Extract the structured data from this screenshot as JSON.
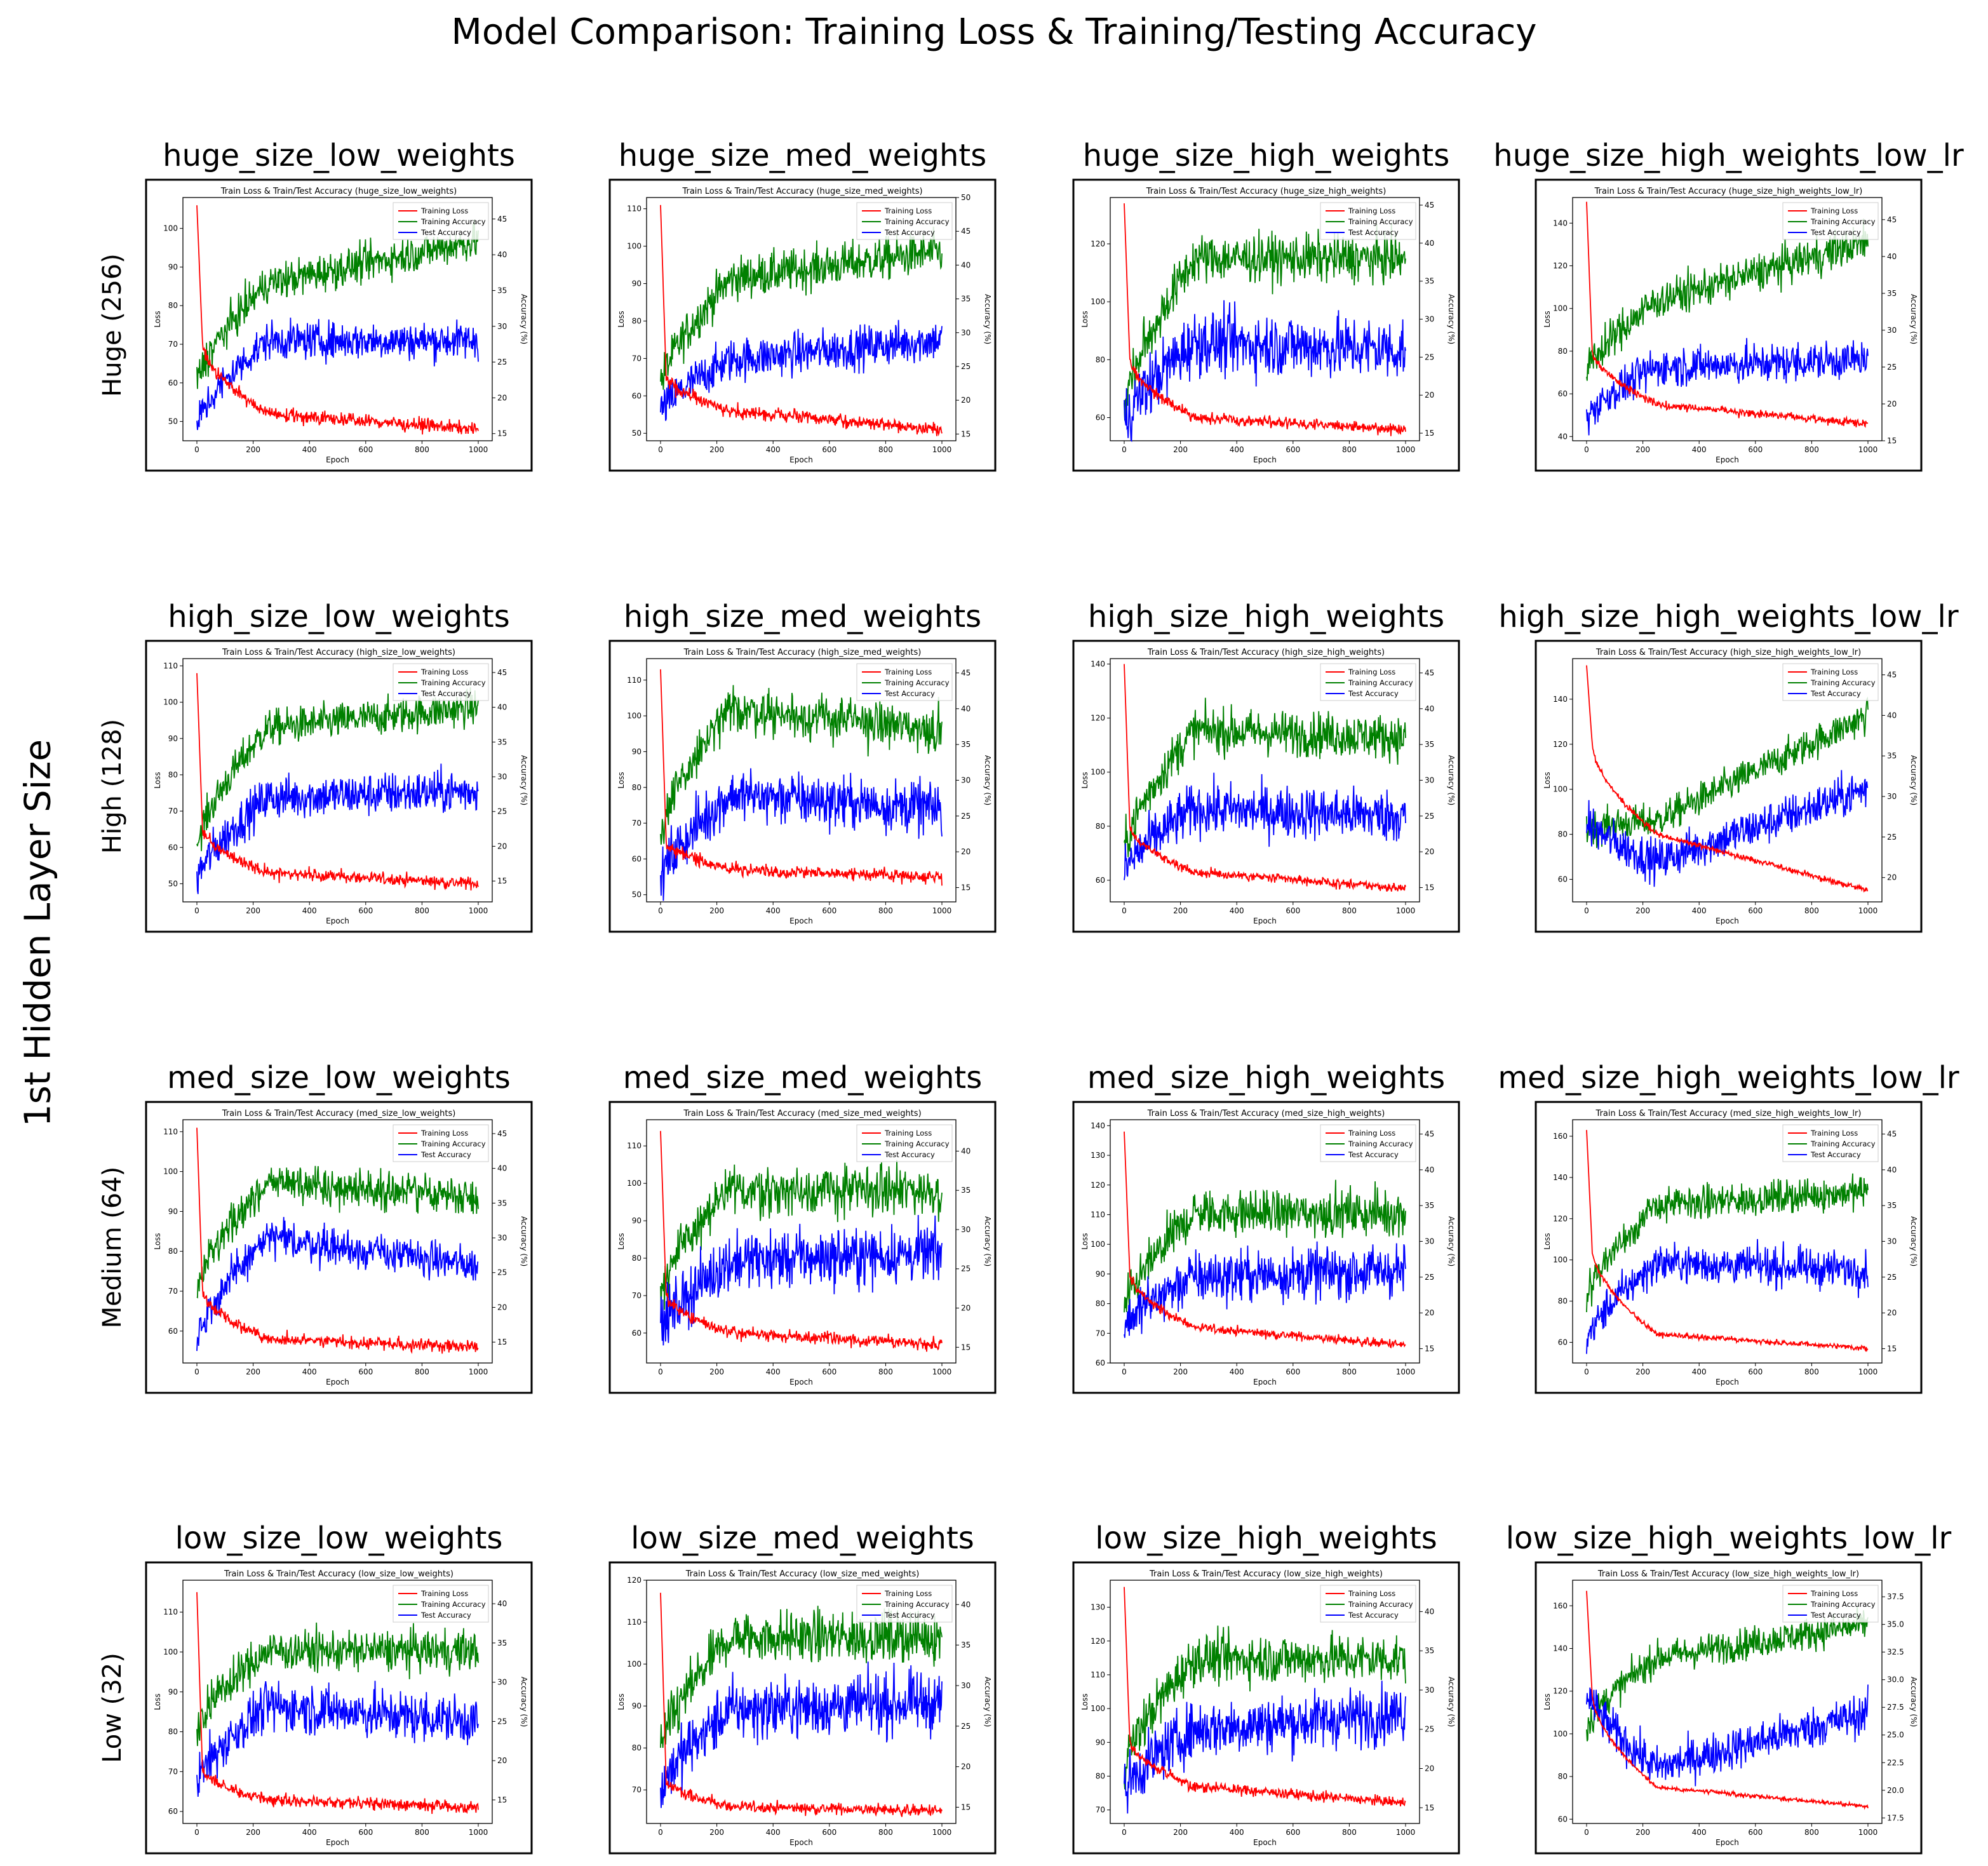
{
  "figure": {
    "title": "Model Comparison: Training Loss & Training/Testing Accuracy",
    "side_label": "1st Hidden Layer Size"
  },
  "colors": {
    "loss": "#ff0000",
    "train_acc": "#008000",
    "test_acc": "#0000ff"
  },
  "chart_data": [
    {
      "type": "line",
      "row_label": "Huge (256)",
      "panel_title": "huge_size_low_weights",
      "inner_title": "Train Loss & Train/Test Accuracy (huge_size_low_weights)",
      "xlabel": "Epoch",
      "ylabel": "Loss",
      "y2label": "Accuracy (%)",
      "xlim": [
        0,
        1000
      ],
      "ylim": [
        45,
        108
      ],
      "y2lim": [
        14,
        48
      ],
      "xticks": [
        0,
        200,
        400,
        600,
        800,
        1000
      ],
      "yticks": [
        50,
        60,
        70,
        80,
        90,
        100
      ],
      "y2ticks": [
        15,
        20,
        25,
        30,
        35,
        40,
        45
      ],
      "legend": [
        "Training Loss",
        "Training Accuracy",
        "Test Accuracy"
      ],
      "legend_loc": "upper right",
      "loss": {
        "start": 106,
        "early": 70,
        "mid": 52,
        "end": 48,
        "noise": 2
      },
      "train_acc": {
        "start": 22,
        "mid": 36,
        "end": 42,
        "noise": 2.5
      },
      "test_acc": {
        "start": 16,
        "mid": 28,
        "end": 28,
        "noise": 2.5
      }
    },
    {
      "type": "line",
      "panel_title": "huge_size_med_weights",
      "inner_title": "Train Loss & Train/Test Accuracy (huge_size_med_weights)",
      "xlabel": "Epoch",
      "ylabel": "Loss",
      "y2label": "Accuracy (%)",
      "xlim": [
        0,
        1000
      ],
      "ylim": [
        48,
        113
      ],
      "y2lim": [
        14,
        50
      ],
      "xticks": [
        0,
        200,
        400,
        600,
        800,
        1000
      ],
      "yticks": [
        50,
        60,
        70,
        80,
        90,
        100,
        110
      ],
      "y2ticks": [
        15,
        20,
        25,
        30,
        35,
        40,
        45,
        50
      ],
      "legend": [
        "Training Loss",
        "Training Accuracy",
        "Test Accuracy"
      ],
      "legend_loc": "upper right",
      "loss": {
        "start": 111,
        "early": 65,
        "mid": 56,
        "end": 51,
        "noise": 2
      },
      "train_acc": {
        "start": 22,
        "mid": 38,
        "end": 42,
        "noise": 3
      },
      "test_acc": {
        "start": 18,
        "mid": 26,
        "end": 29,
        "noise": 3
      }
    },
    {
      "type": "line",
      "panel_title": "huge_size_high_weights",
      "inner_title": "Train Loss & Train/Test Accuracy (huge_size_high_weights)",
      "xlabel": "Epoch",
      "ylabel": "Loss",
      "y2label": "Accuracy (%)",
      "xlim": [
        0,
        1000
      ],
      "ylim": [
        52,
        136
      ],
      "y2lim": [
        14,
        46
      ],
      "xticks": [
        0,
        200,
        400,
        600,
        800,
        1000
      ],
      "yticks": [
        60,
        80,
        100,
        120
      ],
      "y2ticks": [
        15,
        20,
        25,
        30,
        35,
        40,
        45
      ],
      "legend": [
        "Training Loss",
        "Training Accuracy",
        "Test Accuracy"
      ],
      "legend_loc": "upper right",
      "loss": {
        "start": 134,
        "early": 80,
        "mid": 60,
        "end": 56,
        "noise": 2.2
      },
      "train_acc": {
        "start": 18,
        "mid": 38,
        "end": 38,
        "noise": 3
      },
      "test_acc": {
        "start": 16,
        "mid": 27,
        "end": 26,
        "noise": 4
      }
    },
    {
      "type": "line",
      "panel_title": "huge_size_high_weights_low_lr",
      "inner_title": "Train Loss & Train/Test Accuracy (huge_size_high_weights_low_lr)",
      "xlabel": "Epoch",
      "ylabel": "Loss",
      "y2label": "Accuracy (%)",
      "xlim": [
        0,
        1000
      ],
      "ylim": [
        38,
        152
      ],
      "y2lim": [
        15,
        48
      ],
      "xticks": [
        0,
        200,
        400,
        600,
        800,
        1000
      ],
      "yticks": [
        40,
        60,
        80,
        100,
        120,
        140
      ],
      "y2ticks": [
        15,
        20,
        25,
        30,
        35,
        40,
        45
      ],
      "legend": [
        "Training Loss",
        "Training Accuracy",
        "Test Accuracy"
      ],
      "legend_loc": "upper right",
      "loss": {
        "start": 150,
        "early": 80,
        "mid": 55,
        "end": 46,
        "noise": 2.2
      },
      "train_acc": {
        "start": 24,
        "mid": 34,
        "end": 42,
        "noise": 2.5
      },
      "test_acc": {
        "start": 18,
        "mid": 25,
        "end": 26,
        "noise": 2.5
      }
    },
    {
      "type": "line",
      "row_label": "High (128)",
      "panel_title": "high_size_low_weights",
      "inner_title": "Train Loss & Train/Test Accuracy (high_size_low_weights)",
      "xlabel": "Epoch",
      "ylabel": "Loss",
      "y2label": "Accuracy (%)",
      "xlim": [
        0,
        1000
      ],
      "ylim": [
        45,
        112
      ],
      "y2lim": [
        12,
        47
      ],
      "xticks": [
        0,
        200,
        400,
        600,
        800,
        1000
      ],
      "yticks": [
        50,
        60,
        70,
        80,
        90,
        100,
        110
      ],
      "y2ticks": [
        15,
        20,
        25,
        30,
        35,
        40,
        45
      ],
      "legend": [
        "Training Loss",
        "Training Accuracy",
        "Test Accuracy"
      ],
      "legend_loc": "upper right",
      "loss": {
        "start": 108,
        "early": 65,
        "mid": 53,
        "end": 50,
        "noise": 2
      },
      "train_acc": {
        "start": 20,
        "mid": 37,
        "end": 40,
        "noise": 2.5
      },
      "test_acc": {
        "start": 15,
        "mid": 27,
        "end": 28,
        "noise": 3
      }
    },
    {
      "type": "line",
      "panel_title": "high_size_med_weights",
      "inner_title": "Train Loss & Train/Test Accuracy (high_size_med_weights)",
      "xlabel": "Epoch",
      "ylabel": "Loss",
      "y2label": "Accuracy (%)",
      "xlim": [
        0,
        1000
      ],
      "ylim": [
        48,
        116
      ],
      "y2lim": [
        13,
        47
      ],
      "xticks": [
        0,
        200,
        400,
        600,
        800,
        1000
      ],
      "yticks": [
        50,
        60,
        70,
        80,
        90,
        100,
        110
      ],
      "y2ticks": [
        15,
        20,
        25,
        30,
        35,
        40,
        45
      ],
      "legend": [
        "Training Loss",
        "Training Accuracy",
        "Test Accuracy"
      ],
      "legend_loc": "upper right",
      "loss": {
        "start": 113,
        "early": 65,
        "mid": 57,
        "end": 55,
        "noise": 2
      },
      "train_acc": {
        "start": 22,
        "mid": 40,
        "end": 37,
        "noise": 3
      },
      "test_acc": {
        "start": 16,
        "mid": 28,
        "end": 26,
        "noise": 3.5
      }
    },
    {
      "type": "line",
      "panel_title": "high_size_high_weights",
      "inner_title": "Train Loss & Train/Test Accuracy (high_size_high_weights)",
      "xlabel": "Epoch",
      "ylabel": "Loss",
      "y2label": "Accuracy (%)",
      "xlim": [
        0,
        1000
      ],
      "ylim": [
        52,
        142
      ],
      "y2lim": [
        13,
        47
      ],
      "xticks": [
        0,
        200,
        400,
        600,
        800,
        1000
      ],
      "yticks": [
        60,
        80,
        100,
        120,
        140
      ],
      "y2ticks": [
        15,
        20,
        25,
        30,
        35,
        40,
        45
      ],
      "legend": [
        "Training Loss",
        "Training Accuracy",
        "Test Accuracy"
      ],
      "legend_loc": "upper right",
      "loss": {
        "start": 140,
        "early": 80,
        "mid": 63,
        "end": 57,
        "noise": 2
      },
      "train_acc": {
        "start": 20,
        "mid": 37,
        "end": 36,
        "noise": 3
      },
      "test_acc": {
        "start": 17,
        "mid": 26,
        "end": 25,
        "noise": 3.5
      }
    },
    {
      "type": "line",
      "panel_title": "high_size_high_weights_low_lr",
      "inner_title": "Train Loss & Train/Test Accuracy (high_size_high_weights_low_lr)",
      "xlabel": "Epoch",
      "ylabel": "Loss",
      "y2label": "Accuracy (%)",
      "xlim": [
        0,
        1000
      ],
      "ylim": [
        50,
        158
      ],
      "y2lim": [
        17,
        47
      ],
      "xticks": [
        0,
        200,
        400,
        600,
        800,
        1000
      ],
      "yticks": [
        60,
        80,
        100,
        120,
        140
      ],
      "y2ticks": [
        20,
        25,
        30,
        35,
        40,
        45
      ],
      "legend": [
        "Training Loss",
        "Training Accuracy",
        "Test Accuracy"
      ],
      "legend_loc": "upper right",
      "loss": {
        "start": 155,
        "early": 120,
        "mid": 80,
        "end": 55,
        "noise": 1.5
      },
      "train_acc": {
        "start": 26,
        "mid": 27,
        "end": 40,
        "noise": 2
      },
      "test_acc": {
        "start": 27,
        "mid": 22,
        "end": 31,
        "noise": 2.5
      }
    },
    {
      "type": "line",
      "row_label": "Medium (64)",
      "panel_title": "med_size_low_weights",
      "inner_title": "Train Loss & Train/Test Accuracy (med_size_low_weights)",
      "xlabel": "Epoch",
      "ylabel": "Loss",
      "y2label": "Accuracy (%)",
      "xlim": [
        0,
        1000
      ],
      "ylim": [
        52,
        113
      ],
      "y2lim": [
        12,
        47
      ],
      "xticks": [
        0,
        200,
        400,
        600,
        800,
        1000
      ],
      "yticks": [
        60,
        70,
        80,
        90,
        100,
        110
      ],
      "y2ticks": [
        15,
        20,
        25,
        30,
        35,
        40,
        45
      ],
      "legend": [
        "Training Loss",
        "Training Accuracy",
        "Test Accuracy"
      ],
      "legend_loc": "upper right",
      "loss": {
        "start": 111,
        "early": 70,
        "mid": 58,
        "end": 56,
        "noise": 1.8
      },
      "train_acc": {
        "start": 22,
        "mid": 38,
        "end": 36,
        "noise": 2.5
      },
      "test_acc": {
        "start": 15,
        "mid": 30,
        "end": 26,
        "noise": 2.5
      }
    },
    {
      "type": "line",
      "panel_title": "med_size_med_weights",
      "inner_title": "Train Loss & Train/Test Accuracy (med_size_med_weights)",
      "xlabel": "Epoch",
      "ylabel": "Loss",
      "y2label": "Accuracy (%)",
      "xlim": [
        0,
        1000
      ],
      "ylim": [
        52,
        117
      ],
      "y2lim": [
        13,
        44
      ],
      "xticks": [
        0,
        200,
        400,
        600,
        800,
        1000
      ],
      "yticks": [
        60,
        70,
        80,
        90,
        100,
        110
      ],
      "y2ticks": [
        15,
        20,
        25,
        30,
        35,
        40
      ],
      "legend": [
        "Training Loss",
        "Training Accuracy",
        "Test Accuracy"
      ],
      "legend_loc": "upper right",
      "loss": {
        "start": 114,
        "early": 70,
        "mid": 60,
        "end": 57,
        "noise": 2
      },
      "train_acc": {
        "start": 22,
        "mid": 35,
        "end": 35,
        "noise": 3
      },
      "test_acc": {
        "start": 17,
        "mid": 26,
        "end": 27,
        "noise": 3.5
      }
    },
    {
      "type": "line",
      "panel_title": "med_size_high_weights",
      "inner_title": "Train Loss & Train/Test Accuracy (med_size_high_weights)",
      "xlabel": "Epoch",
      "ylabel": "Loss",
      "y2label": "Accuracy (%)",
      "xlim": [
        0,
        1000
      ],
      "ylim": [
        60,
        142
      ],
      "y2lim": [
        13,
        47
      ],
      "xticks": [
        0,
        200,
        400,
        600,
        800,
        1000
      ],
      "yticks": [
        60,
        70,
        80,
        90,
        100,
        110,
        120,
        130,
        140
      ],
      "y2ticks": [
        15,
        20,
        25,
        30,
        35,
        40,
        45
      ],
      "legend": [
        "Training Loss",
        "Training Accuracy",
        "Test Accuracy"
      ],
      "legend_loc": "upper right",
      "loss": {
        "start": 138,
        "early": 90,
        "mid": 72,
        "end": 66,
        "noise": 1.8
      },
      "train_acc": {
        "start": 20,
        "mid": 34,
        "end": 34,
        "noise": 3
      },
      "test_acc": {
        "start": 18,
        "mid": 25,
        "end": 26,
        "noise": 3.5
      }
    },
    {
      "type": "line",
      "panel_title": "med_size_high_weights_low_lr",
      "inner_title": "Train Loss & Train/Test Accuracy (med_size_high_weights_low_lr)",
      "xlabel": "Epoch",
      "ylabel": "Loss",
      "y2label": "Accuracy (%)",
      "xlim": [
        0,
        1000
      ],
      "ylim": [
        50,
        168
      ],
      "y2lim": [
        13,
        47
      ],
      "xticks": [
        0,
        200,
        400,
        600,
        800,
        1000
      ],
      "yticks": [
        60,
        80,
        100,
        120,
        140,
        160
      ],
      "y2ticks": [
        15,
        20,
        25,
        30,
        35,
        40,
        45
      ],
      "legend": [
        "Training Loss",
        "Training Accuracy",
        "Test Accuracy"
      ],
      "legend_loc": "upper right",
      "loss": {
        "start": 163,
        "early": 105,
        "mid": 64,
        "end": 57,
        "noise": 1.5
      },
      "train_acc": {
        "start": 22,
        "mid": 35,
        "end": 37,
        "noise": 2.2
      },
      "test_acc": {
        "start": 16,
        "mid": 27,
        "end": 26,
        "noise": 2.5
      }
    },
    {
      "type": "line",
      "row_label": "Low (32)",
      "panel_title": "low_size_low_weights",
      "inner_title": "Train Loss & Train/Test Accuracy (low_size_low_weights)",
      "xlabel": "Epoch",
      "ylabel": "Loss",
      "y2label": "Accuracy (%)",
      "xlim": [
        0,
        1000
      ],
      "ylim": [
        57,
        118
      ],
      "y2lim": [
        12,
        43
      ],
      "xticks": [
        0,
        200,
        400,
        600,
        800,
        1000
      ],
      "yticks": [
        60,
        70,
        80,
        90,
        100,
        110
      ],
      "y2ticks": [
        15,
        20,
        25,
        30,
        35,
        40
      ],
      "legend": [
        "Training Loss",
        "Training Accuracy",
        "Test Accuracy"
      ],
      "legend_loc": "upper right",
      "loss": {
        "start": 115,
        "early": 70,
        "mid": 63,
        "end": 61,
        "noise": 1.8
      },
      "train_acc": {
        "start": 24,
        "mid": 34,
        "end": 34,
        "noise": 2.5
      },
      "test_acc": {
        "start": 17,
        "mid": 27,
        "end": 25,
        "noise": 3
      }
    },
    {
      "type": "line",
      "panel_title": "low_size_med_weights",
      "inner_title": "Train Loss & Train/Test Accuracy (low_size_med_weights)",
      "xlabel": "Epoch",
      "ylabel": "Loss",
      "y2label": "Accuracy (%)",
      "xlim": [
        0,
        1000
      ],
      "ylim": [
        62,
        120
      ],
      "y2lim": [
        13,
        43
      ],
      "xticks": [
        0,
        200,
        400,
        600,
        800,
        1000
      ],
      "yticks": [
        70,
        80,
        90,
        100,
        110,
        120
      ],
      "y2ticks": [
        15,
        20,
        25,
        30,
        35,
        40
      ],
      "legend": [
        "Training Loss",
        "Training Accuracy",
        "Test Accuracy"
      ],
      "legend_loc": "upper right",
      "loss": {
        "start": 117,
        "early": 72,
        "mid": 66,
        "end": 65,
        "noise": 1.6
      },
      "train_acc": {
        "start": 22,
        "mid": 36,
        "end": 36,
        "noise": 3
      },
      "test_acc": {
        "start": 17,
        "mid": 27,
        "end": 28,
        "noise": 3.5
      }
    },
    {
      "type": "line",
      "panel_title": "low_size_high_weights",
      "inner_title": "Train Loss & Train/Test Accuracy (low_size_high_weights)",
      "xlabel": "Epoch",
      "ylabel": "Loss",
      "y2label": "Accuracy (%)",
      "xlim": [
        0,
        1000
      ],
      "ylim": [
        66,
        138
      ],
      "y2lim": [
        13,
        44
      ],
      "xticks": [
        0,
        200,
        400,
        600,
        800,
        1000
      ],
      "yticks": [
        70,
        80,
        90,
        100,
        110,
        120,
        130
      ],
      "y2ticks": [
        15,
        20,
        25,
        30,
        35,
        40
      ],
      "legend": [
        "Training Loss",
        "Training Accuracy",
        "Test Accuracy"
      ],
      "legend_loc": "upper right",
      "loss": {
        "start": 136,
        "early": 90,
        "mid": 77,
        "end": 72,
        "noise": 1.8
      },
      "train_acc": {
        "start": 20,
        "mid": 34,
        "end": 34,
        "noise": 3
      },
      "test_acc": {
        "start": 17,
        "mid": 25,
        "end": 27,
        "noise": 3.5
      }
    },
    {
      "type": "line",
      "panel_title": "low_size_high_weights_low_lr",
      "inner_title": "Train Loss & Train/Test Accuracy (low_size_high_weights_low_lr)",
      "xlabel": "Epoch",
      "ylabel": "Loss",
      "y2label": "Accuracy (%)",
      "xlim": [
        0,
        1000
      ],
      "ylim": [
        58,
        172
      ],
      "y2lim": [
        17,
        39
      ],
      "xticks": [
        0,
        200,
        400,
        600,
        800,
        1000
      ],
      "yticks": [
        60,
        80,
        100,
        120,
        140,
        160
      ],
      "y2ticks": [
        "17.5",
        "20.0",
        "22.5",
        "25.0",
        "27.5",
        "30.0",
        "32.5",
        "35.0",
        "37.5"
      ],
      "legend": [
        "Training Loss",
        "Training Accuracy",
        "Test Accuracy"
      ],
      "legend_loc": "upper right",
      "loss": {
        "start": 167,
        "early": 118,
        "mid": 75,
        "end": 66,
        "noise": 1.2
      },
      "train_acc": {
        "start": 25.5,
        "mid": 32,
        "end": 35,
        "noise": 1.4
      },
      "test_acc": {
        "start": 29,
        "mid": 22,
        "end": 27,
        "noise": 1.8
      }
    }
  ]
}
